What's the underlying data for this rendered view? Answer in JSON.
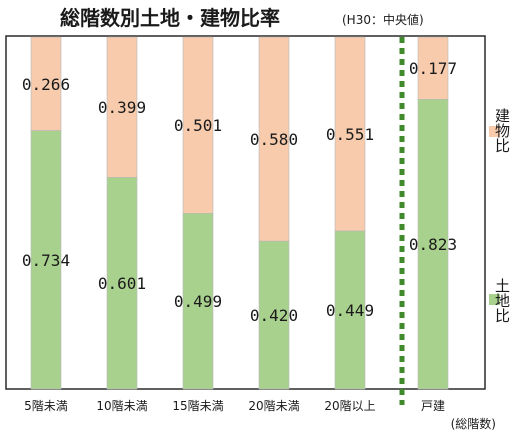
{
  "chart_data": {
    "type": "bar",
    "stacked": true,
    "title": "総階数別土地・建物比率",
    "subtitle": "(H30：中央値)",
    "categories": [
      "5階未満",
      "10階未満",
      "15階未満",
      "20階未満",
      "20階以上",
      "戸建"
    ],
    "xlabel": "(総階数)",
    "ylim": [
      0,
      1
    ],
    "series": [
      {
        "name": "土地比",
        "values": [
          0.734,
          0.601,
          0.499,
          0.42,
          0.449,
          0.823
        ],
        "labels": [
          "0.734",
          "0.601",
          "0.499",
          "0.420",
          "0.449",
          "0.823"
        ]
      },
      {
        "name": "建物比",
        "values": [
          0.266,
          0.399,
          0.501,
          0.58,
          0.551,
          0.177
        ],
        "labels": [
          "0.266",
          "0.399",
          "0.501",
          "0.580",
          "0.551",
          "0.177"
        ]
      }
    ],
    "legend": "right",
    "separator_before": "戸建",
    "grid": false
  },
  "colors": {
    "land": "#a9d18e",
    "building": "#f8cbad",
    "bar_border": "#b8b8b8",
    "frame": "#2a2a2a",
    "separator": "#3f8a2a"
  }
}
